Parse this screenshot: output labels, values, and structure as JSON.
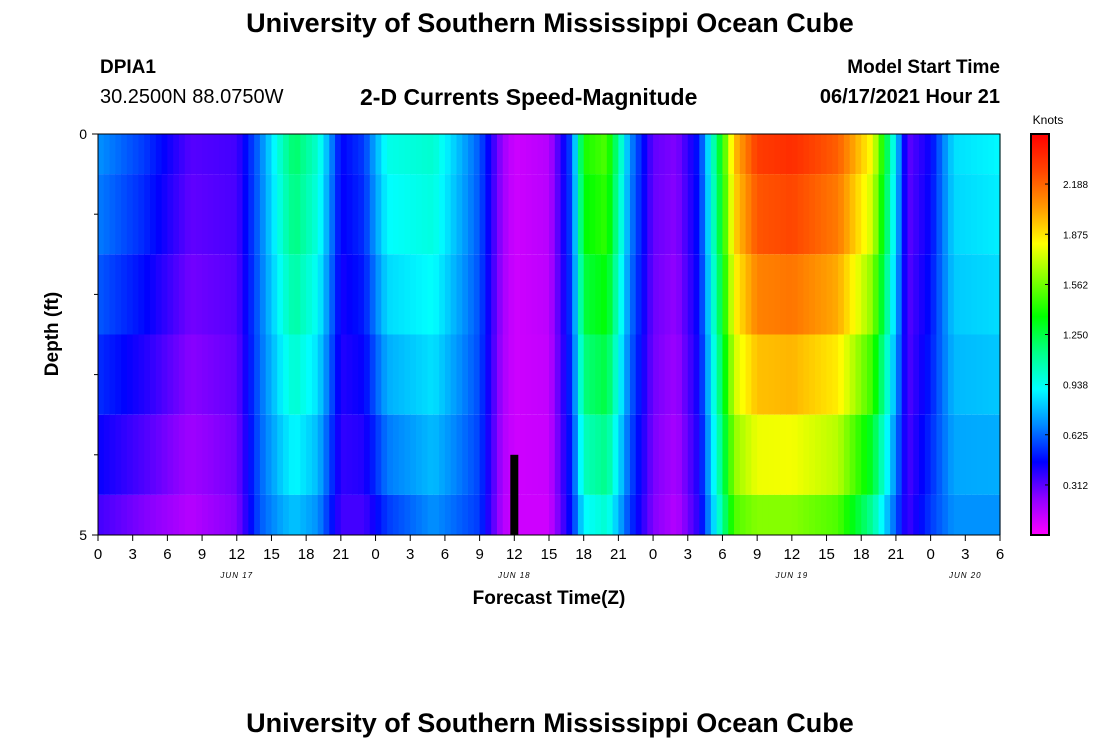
{
  "page": {
    "title_top": "University of Southern Mississippi Ocean Cube",
    "title_bottom": "University of Southern Mississippi Ocean Cube",
    "station_id": "DPIA1",
    "station_coords": "30.2500N  88.0750W",
    "chart_heading": "2-D Currents Speed-Magnitude",
    "model_start_label": "Model Start Time",
    "model_start_value": "06/17/2021 Hour 21"
  },
  "chart_data": {
    "type": "heatmap",
    "title": "2-D Currents Speed-Magnitude",
    "xlabel": "Forecast Time(Z)",
    "ylabel": "Depth (ft)",
    "x_tick_labels": [
      "0",
      "3",
      "6",
      "9",
      "12",
      "15",
      "18",
      "21",
      "0",
      "3",
      "6",
      "9",
      "12",
      "15",
      "18",
      "21",
      "0",
      "3",
      "6",
      "9",
      "12",
      "15",
      "18",
      "21",
      "0",
      "3",
      "6"
    ],
    "date_labels": [
      {
        "label": "JUN 17",
        "tick_index": 4
      },
      {
        "label": "JUN 18",
        "tick_index": 12
      },
      {
        "label": "JUN 19",
        "tick_index": 20
      },
      {
        "label": "JUN 20",
        "tick_index": 25
      }
    ],
    "x_range_hours": [
      0,
      78
    ],
    "y_range_ft": [
      0,
      5
    ],
    "y_tick_labels": [
      "0",
      "5"
    ],
    "depth_rows_ft": [
      0,
      1,
      2,
      3,
      4,
      5
    ],
    "colorbar": {
      "unit": "Knots",
      "min": 0,
      "max": 2.5,
      "tick_labels": [
        "0.312",
        "0.625",
        "0.938",
        "1.250",
        "1.562",
        "1.875",
        "2.188"
      ],
      "tick_values": [
        0.312,
        0.625,
        0.938,
        1.25,
        1.562,
        1.875,
        2.188
      ],
      "colors": [
        "#ff00ff",
        "#9000ff",
        "#0000ff",
        "#0088ff",
        "#00ffff",
        "#00ff88",
        "#00ff00",
        "#80ff00",
        "#ffff00",
        "#ff9900",
        "#ff4400",
        "#ff0000"
      ]
    },
    "speed_profile_knots": [
      {
        "hour": 0,
        "surface": 0.7,
        "bottom": 0.35
      },
      {
        "hour": 4,
        "surface": 0.55,
        "bottom": 0.25
      },
      {
        "hour": 8,
        "surface": 0.32,
        "bottom": 0.15
      },
      {
        "hour": 12,
        "surface": 0.35,
        "bottom": 0.25
      },
      {
        "hour": 14,
        "surface": 0.65,
        "bottom": 0.6
      },
      {
        "hour": 16,
        "surface": 1.05,
        "bottom": 0.75
      },
      {
        "hour": 17,
        "surface": 1.2,
        "bottom": 0.8
      },
      {
        "hour": 19,
        "surface": 1.0,
        "bottom": 0.7
      },
      {
        "hour": 21,
        "surface": 0.45,
        "bottom": 0.35
      },
      {
        "hour": 23,
        "surface": 0.55,
        "bottom": 0.35
      },
      {
        "hour": 25,
        "surface": 0.95,
        "bottom": 0.55
      },
      {
        "hour": 29,
        "surface": 1.0,
        "bottom": 0.7
      },
      {
        "hour": 33,
        "surface": 0.6,
        "bottom": 0.55
      },
      {
        "hour": 35,
        "surface": 0.2,
        "bottom": 0.15
      },
      {
        "hour": 36,
        "surface": 0.1,
        "bottom": 0.1
      },
      {
        "hour": 39,
        "surface": 0.15,
        "bottom": 0.1
      },
      {
        "hour": 41,
        "surface": 0.6,
        "bottom": 0.5
      },
      {
        "hour": 42,
        "surface": 1.4,
        "bottom": 0.9
      },
      {
        "hour": 44,
        "surface": 1.5,
        "bottom": 1.0
      },
      {
        "hour": 46,
        "surface": 0.7,
        "bottom": 0.55
      },
      {
        "hour": 48,
        "surface": 0.3,
        "bottom": 0.25
      },
      {
        "hour": 50,
        "surface": 0.25,
        "bottom": 0.15
      },
      {
        "hour": 52,
        "surface": 0.5,
        "bottom": 0.4
      },
      {
        "hour": 54,
        "surface": 1.4,
        "bottom": 1.1
      },
      {
        "hour": 55,
        "surface": 1.95,
        "bottom": 1.5
      },
      {
        "hour": 57,
        "surface": 2.3,
        "bottom": 1.6
      },
      {
        "hour": 60,
        "surface": 2.35,
        "bottom": 1.6
      },
      {
        "hour": 64,
        "surface": 2.2,
        "bottom": 1.5
      },
      {
        "hour": 67,
        "surface": 1.8,
        "bottom": 1.1
      },
      {
        "hour": 69,
        "surface": 0.85,
        "bottom": 0.6
      },
      {
        "hour": 70,
        "surface": 0.3,
        "bottom": 0.35
      },
      {
        "hour": 72,
        "surface": 0.45,
        "bottom": 0.55
      },
      {
        "hour": 74,
        "surface": 0.85,
        "bottom": 0.7
      },
      {
        "hour": 78,
        "surface": 0.9,
        "bottom": 0.7
      }
    ],
    "marker": {
      "hour": 36,
      "depth_from_ft": 4,
      "depth_to_ft": 5
    }
  }
}
